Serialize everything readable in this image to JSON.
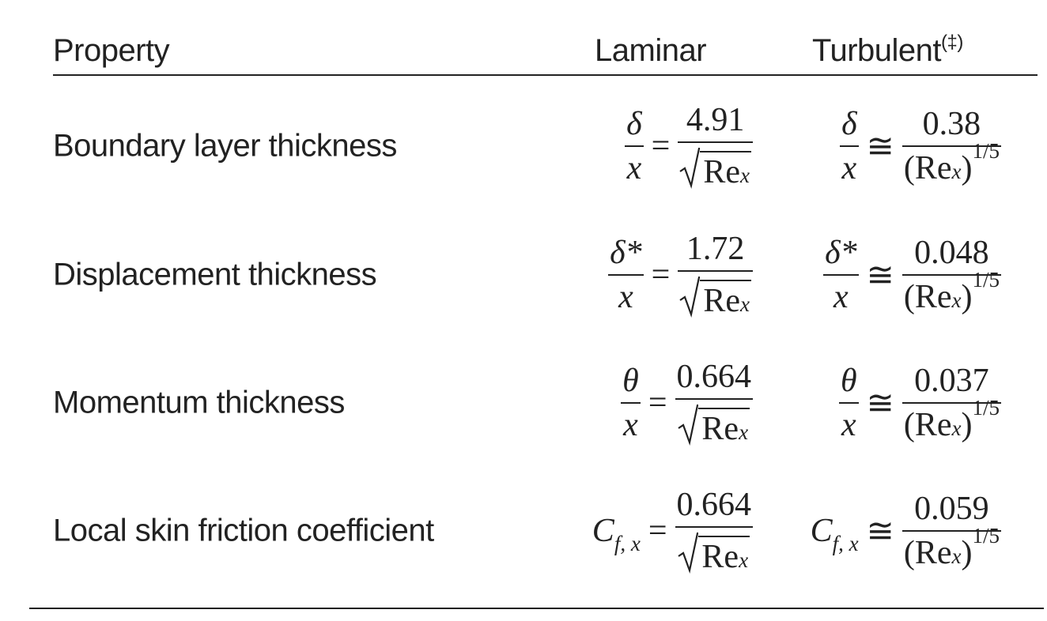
{
  "table": {
    "header": {
      "property": "Property",
      "laminar": "Laminar",
      "turbulent": "Turbulent",
      "turbulent_note": "(‡)"
    },
    "rows": [
      {
        "property": "Boundary layer thickness",
        "laminar": {
          "lhs": {
            "num": "δ",
            "den": "x"
          },
          "rel": "=",
          "num": "4.91",
          "den": {
            "base": "Re",
            "sub": "x"
          }
        },
        "turbulent": {
          "lhs": {
            "num": "δ",
            "den": "x"
          },
          "rel": "≅",
          "num": "0.38",
          "den": {
            "open": "(",
            "base": "Re",
            "sub": "x",
            "close": ")",
            "sup": "1/5"
          }
        }
      },
      {
        "property": "Displacement thickness",
        "laminar": {
          "lhs": {
            "num": "δ*",
            "den": "x"
          },
          "rel": "=",
          "num": "1.72",
          "den": {
            "base": "Re",
            "sub": "x"
          }
        },
        "turbulent": {
          "lhs": {
            "num": "δ*",
            "den": "x"
          },
          "rel": "≅",
          "num": "0.048",
          "den": {
            "open": "(",
            "base": "Re",
            "sub": "x",
            "close": ")",
            "sup": "1/5"
          }
        }
      },
      {
        "property": "Momentum thickness",
        "laminar": {
          "lhs": {
            "num": "θ",
            "den": "x"
          },
          "rel": "=",
          "num": "0.664",
          "den": {
            "base": "Re",
            "sub": "x"
          }
        },
        "turbulent": {
          "lhs": {
            "num": "θ",
            "den": "x"
          },
          "rel": "≅",
          "num": "0.037",
          "den": {
            "open": "(",
            "base": "Re",
            "sub": "x",
            "close": ")",
            "sup": "1/5"
          }
        }
      },
      {
        "property": "Local skin friction coefficient",
        "laminar": {
          "lhs": {
            "base": "C",
            "sub": "f, x"
          },
          "rel": "=",
          "num": "0.664",
          "den": {
            "base": "Re",
            "sub": "x"
          }
        },
        "turbulent": {
          "lhs": {
            "base": "C",
            "sub": "f, x"
          },
          "rel": "≅",
          "num": "0.059",
          "den": {
            "open": "(",
            "base": "Re",
            "sub": "x",
            "close": ")",
            "sup": "1/5"
          }
        }
      }
    ]
  }
}
